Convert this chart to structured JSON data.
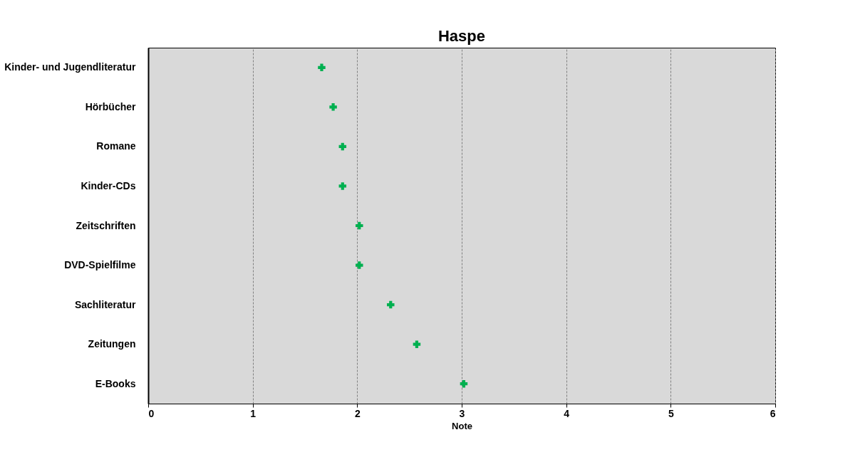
{
  "chart_data": {
    "type": "scatter",
    "title": "Haspe",
    "xlabel": "Note",
    "categories": [
      "Kinder- und Jugendliteratur",
      "Hörbücher",
      "Romane",
      "Kinder-CDs",
      "Zeitschriften",
      "DVD-Spielfilme",
      "Sachliteratur",
      "Zeitungen",
      "E-Books"
    ],
    "orientation": "horizontal",
    "series": [
      {
        "color": "#00b050",
        "values": [
          1.66,
          1.77,
          1.86,
          1.86,
          2.02,
          2.02,
          2.32,
          2.57,
          3.02
        ]
      }
    ],
    "xlim": [
      0,
      6
    ],
    "xticks": [
      0,
      1,
      2,
      3,
      4,
      5,
      6
    ],
    "grid": "x",
    "marker": "cross"
  }
}
